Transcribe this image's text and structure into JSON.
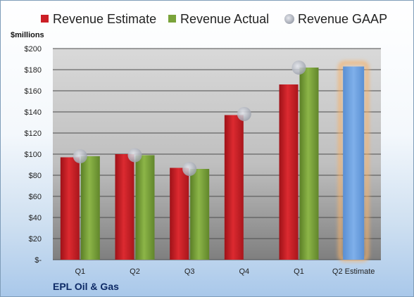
{
  "chart_data": {
    "type": "bar",
    "title": "",
    "unit_label": "$millions",
    "company": "EPL Oil & Gas",
    "categories": [
      "Q1",
      "Q2",
      "Q3",
      "Q4",
      "Q1",
      "Q2 Estimate"
    ],
    "y_ticks": [
      "$-",
      "$20",
      "$40",
      "$60",
      "$80",
      "$100",
      "$120",
      "$140",
      "$160",
      "$180",
      "$200"
    ],
    "ylim": [
      0,
      200
    ],
    "grid": true,
    "legend_position": "top",
    "series": [
      {
        "name": "Revenue Estimate",
        "color": "#cc1f26",
        "values": [
          97,
          100,
          87,
          137,
          166,
          null
        ]
      },
      {
        "name": "Revenue Actual",
        "color": "#7aa33a",
        "values": [
          98,
          99,
          86,
          null,
          182,
          null
        ]
      },
      {
        "name": "Revenue GAAP",
        "color": "#b5b9c2",
        "values": [
          98,
          99,
          86,
          138,
          182,
          null
        ]
      }
    ],
    "projection": {
      "category": "Q2 Estimate",
      "value": 183,
      "color": "#6d9fdc",
      "glow_color": "#f6b26b"
    }
  }
}
